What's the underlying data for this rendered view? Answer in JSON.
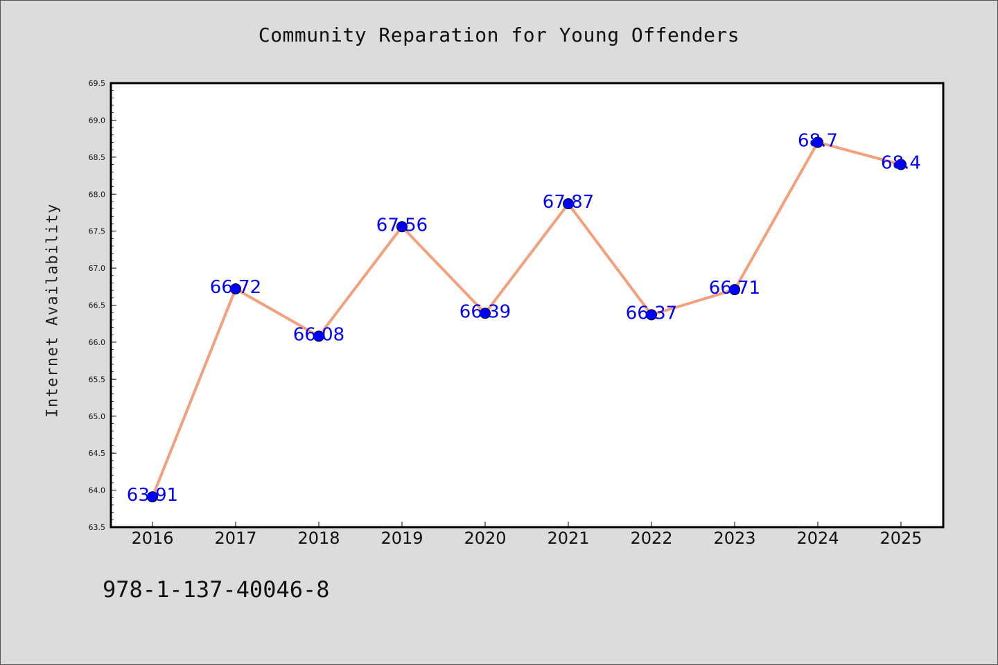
{
  "chart_data": {
    "type": "line",
    "title": "Community Reparation for Young Offenders",
    "xlabel": "",
    "ylabel": "Internet Availability",
    "categories": [
      "2016",
      "2017",
      "2018",
      "2019",
      "2020",
      "2021",
      "2022",
      "2023",
      "2024",
      "2025"
    ],
    "values": [
      63.91,
      66.72,
      66.08,
      67.56,
      66.39,
      67.87,
      66.37,
      66.71,
      68.7,
      68.4
    ],
    "data_labels": [
      "63.91",
      "66.72",
      "66.08",
      "67.56",
      "66.39",
      "67.87",
      "66.37",
      "66.71",
      "68.7",
      "68.4"
    ],
    "ylim": [
      63.5,
      69.5
    ],
    "y_ticks": [
      "63.5",
      "64.0",
      "64.5",
      "65.0",
      "65.5",
      "66.0",
      "66.5",
      "67.0",
      "67.5",
      "68.0",
      "68.5",
      "69.0",
      "69.5"
    ],
    "grid": false,
    "line_color": "#f4a07c",
    "marker_color": "#0000ff",
    "label_color": "#0000ff",
    "plot_background": "#ffffff",
    "page_background": "#dcdcdc"
  },
  "footer": {
    "code": "978-1-137-40046-8"
  }
}
